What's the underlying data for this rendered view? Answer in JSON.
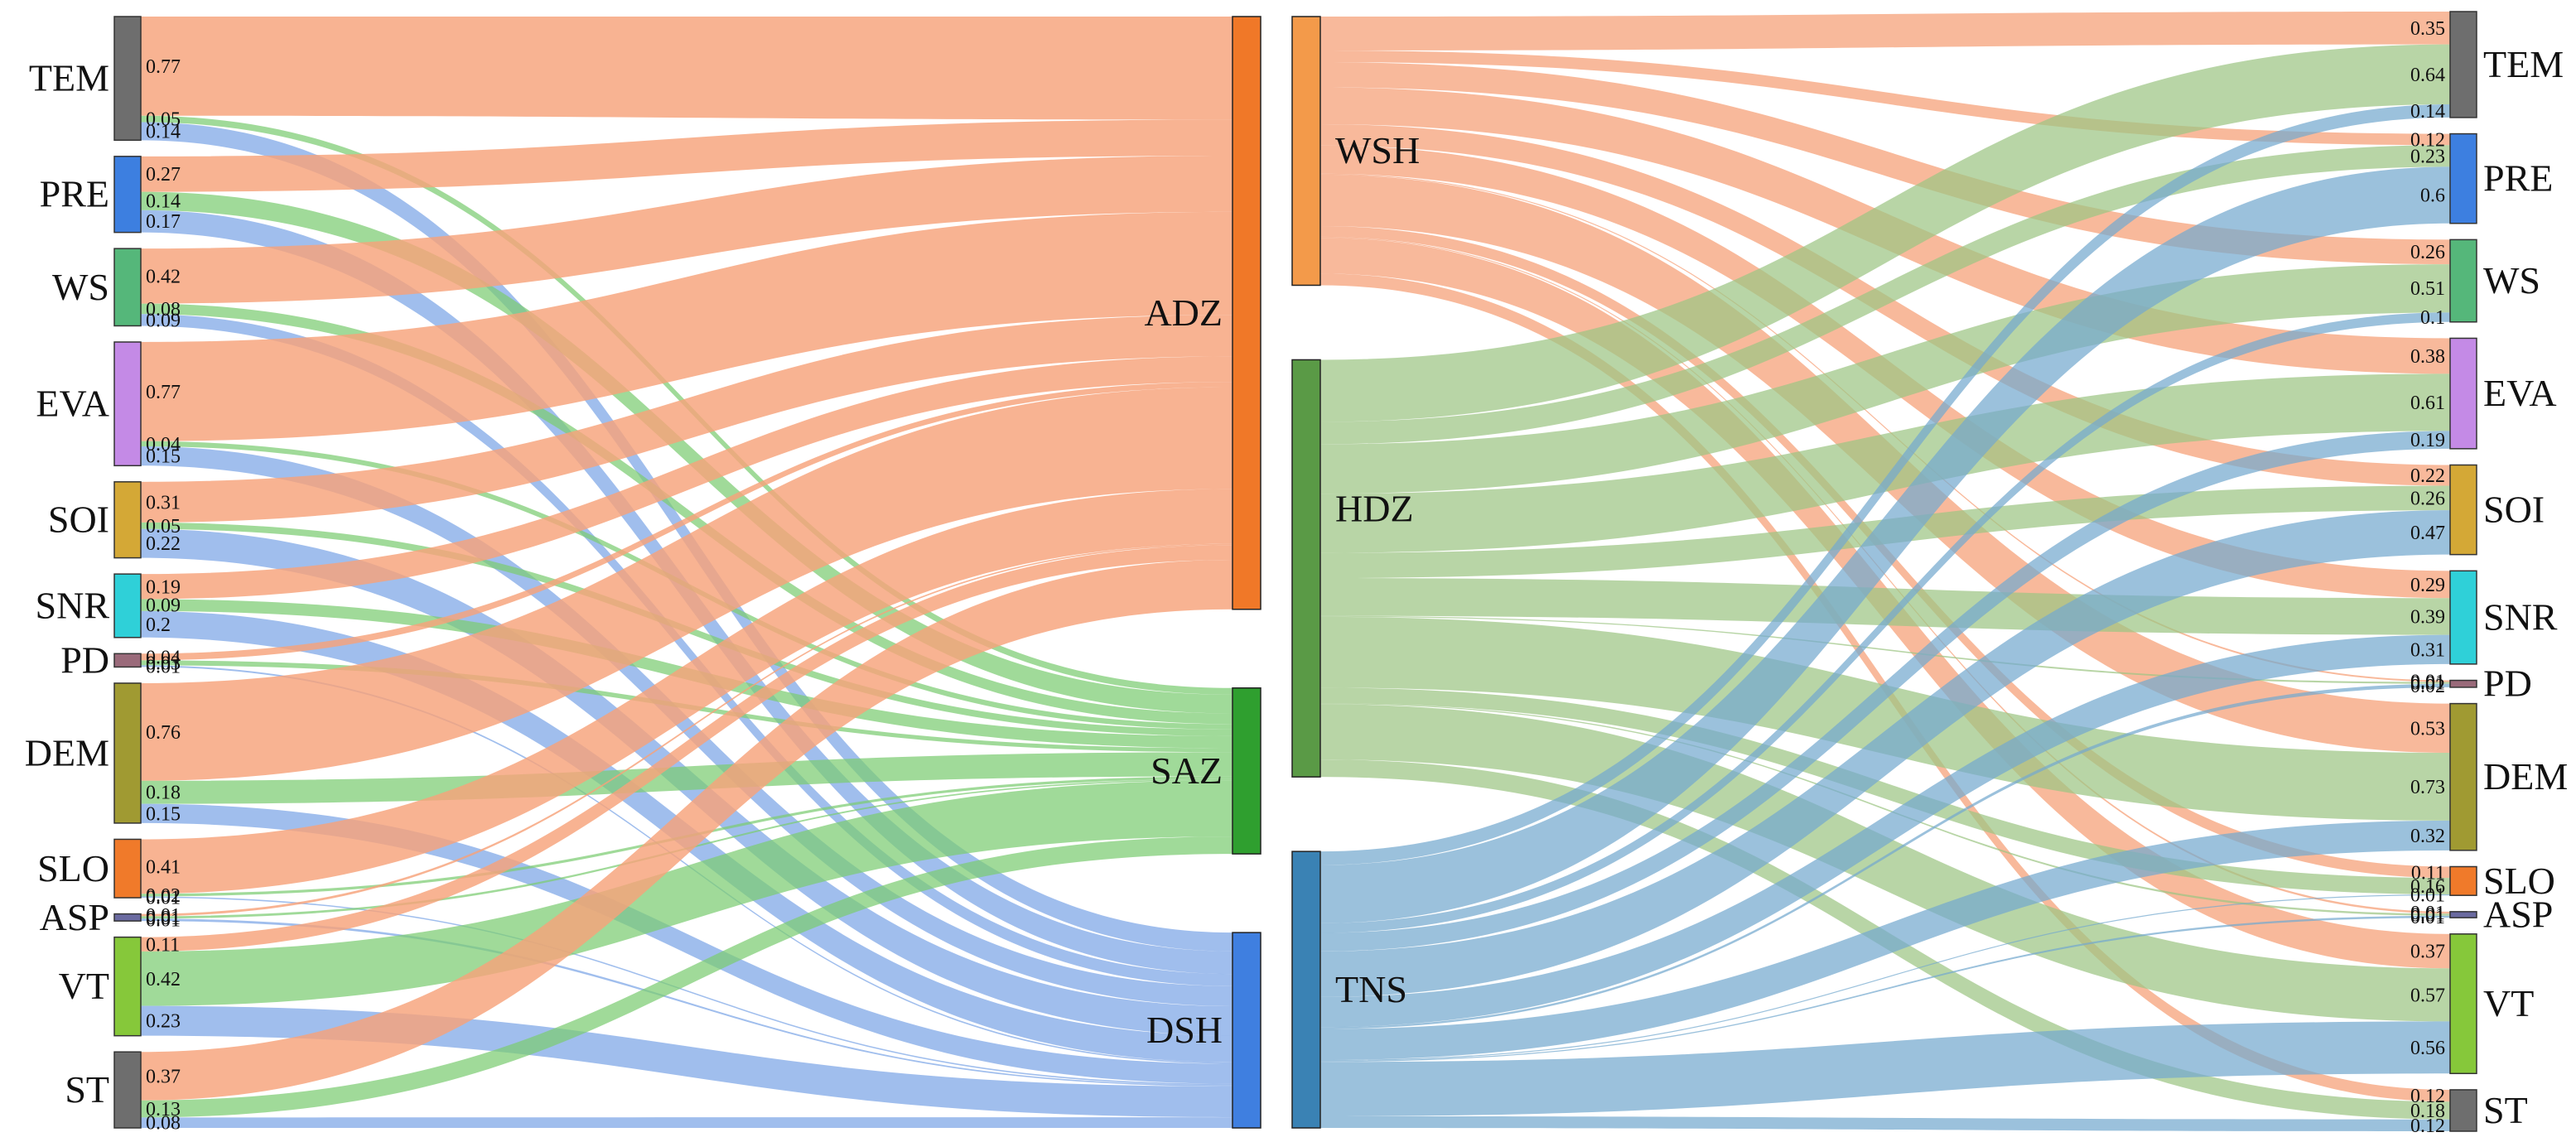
{
  "colors": {
    "ADZ": "#f7a27a",
    "SAZ": "#7ccc72",
    "DSH": "#7ba5e6",
    "WSH": "#f6a57f",
    "HDZ": "#9cc584",
    "TNS": "#74a9cf",
    "TEM": "#6e6e6e",
    "PRE": "#3d7fe0",
    "WS": "#55b77a",
    "EVA": "#c48ae6",
    "SOI": "#d4a836",
    "SNR": "#2fd0d8",
    "PD": "#9a6a7a",
    "DEM": "#a09a32",
    "SLO": "#f07a2a",
    "ASP": "#6a6aa0",
    "VT": "#86c83a",
    "ST": "#6e6e6e",
    "ADZ_bar": "#f07828",
    "SAZ_bar": "#2f9f2f",
    "DSH_bar": "#3f7fe0",
    "WSH_bar": "#f39a4a",
    "HDZ_bar": "#5a9a46",
    "TNS_bar": "#3a82b4"
  },
  "left_panel": {
    "factors": [
      {
        "name": "TEM",
        "values": [
          0.77,
          0.05,
          0.14
        ]
      },
      {
        "name": "PRE",
        "values": [
          0.27,
          0.14,
          0.17
        ]
      },
      {
        "name": "WS",
        "values": [
          0.42,
          0.08,
          0.09
        ]
      },
      {
        "name": "EVA",
        "values": [
          0.77,
          0.04,
          0.15
        ]
      },
      {
        "name": "SOI",
        "values": [
          0.31,
          0.05,
          0.22
        ]
      },
      {
        "name": "SNR",
        "values": [
          0.19,
          0.09,
          0.2
        ]
      },
      {
        "name": "PD",
        "values": [
          0.04,
          0.03,
          0.01
        ]
      },
      {
        "name": "DEM",
        "values": [
          0.76,
          0.18,
          0.15
        ]
      },
      {
        "name": "SLO",
        "values": [
          0.41,
          0.02,
          0.01
        ]
      },
      {
        "name": "ASP",
        "values": [
          0.01,
          0.01,
          0.01
        ]
      },
      {
        "name": "VT",
        "values": [
          0.11,
          0.42,
          0.23
        ]
      },
      {
        "name": "ST",
        "values": [
          0.37,
          0.13,
          0.08
        ]
      }
    ],
    "targets": [
      "ADZ",
      "SAZ",
      "DSH"
    ]
  },
  "right_panel": {
    "sources": [
      "WSH",
      "HDZ",
      "TNS"
    ],
    "factors": [
      {
        "name": "TEM",
        "values": [
          0.35,
          0.64,
          0.14
        ]
      },
      {
        "name": "PRE",
        "values": [
          0.12,
          0.23,
          0.6
        ]
      },
      {
        "name": "WS",
        "values": [
          0.26,
          0.51,
          0.1
        ]
      },
      {
        "name": "EVA",
        "values": [
          0.38,
          0.61,
          0.19
        ]
      },
      {
        "name": "SOI",
        "values": [
          0.22,
          0.26,
          0.47
        ]
      },
      {
        "name": "SNR",
        "values": [
          0.29,
          0.39,
          0.31
        ]
      },
      {
        "name": "PD",
        "values": [
          0.01,
          0.01,
          0.02
        ]
      },
      {
        "name": "DEM",
        "values": [
          0.53,
          0.73,
          0.32
        ]
      },
      {
        "name": "SLO",
        "values": [
          0.11,
          0.16,
          0.01
        ]
      },
      {
        "name": "ASP",
        "values": [
          0.01,
          0.01,
          0.01
        ]
      },
      {
        "name": "VT",
        "values": [
          0.37,
          0.57,
          0.56
        ]
      },
      {
        "name": "ST",
        "values": [
          0.12,
          0.18,
          0.12
        ]
      }
    ]
  }
}
